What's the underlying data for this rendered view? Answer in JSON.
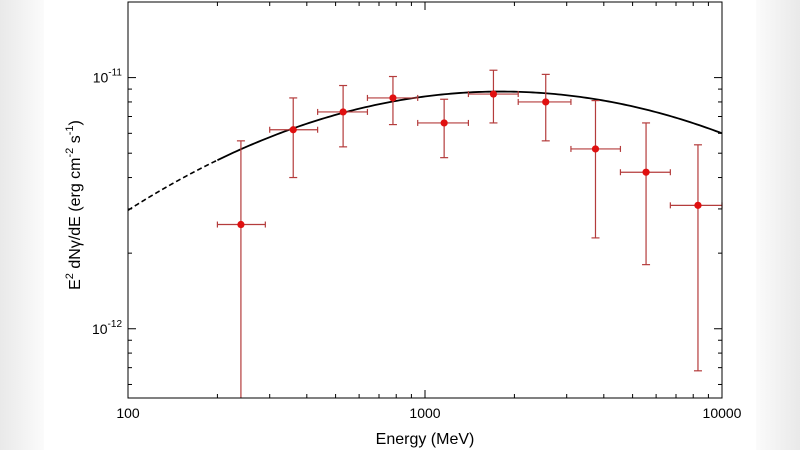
{
  "chart_data": {
    "type": "scatter",
    "xscale": "log",
    "yscale": "log",
    "xlim": [
      100,
      10000
    ],
    "ylim": [
      5.3e-13,
      2e-11
    ],
    "xlabel": "Energy (MeV)",
    "ylabel": {
      "parts": [
        "E",
        "2",
        " dN",
        "γ",
        "/dE (erg cm",
        "-2",
        " s",
        "-1",
        ")"
      ]
    },
    "x_ticks": [
      {
        "value": 100,
        "label": "100"
      },
      {
        "value": 1000,
        "label": "1000"
      },
      {
        "value": 10000,
        "label": "10000"
      }
    ],
    "y_ticks": [
      {
        "value": 1e-11,
        "base": "10",
        "exp": "-11"
      },
      {
        "value": 1e-12,
        "base": "10",
        "exp": "-12"
      }
    ],
    "grid": false,
    "colors": {
      "points": "#e01010",
      "errorbars": "#b43c3c",
      "model": "#000000"
    },
    "points": [
      {
        "x": 240,
        "y": 2.6e-12,
        "xlo": 200,
        "xhi": 290,
        "ylo": 3e-13,
        "yhi": 5.6e-12
      },
      {
        "x": 360,
        "y": 6.2e-12,
        "xlo": 300,
        "xhi": 435,
        "ylo": 4e-12,
        "yhi": 8.3e-12
      },
      {
        "x": 530,
        "y": 7.3e-12,
        "xlo": 435,
        "xhi": 640,
        "ylo": 5.3e-12,
        "yhi": 9.3e-12
      },
      {
        "x": 780,
        "y": 8.3e-12,
        "xlo": 640,
        "xhi": 945,
        "ylo": 6.5e-12,
        "yhi": 1.01e-11
      },
      {
        "x": 1160,
        "y": 6.6e-12,
        "xlo": 945,
        "xhi": 1400,
        "ylo": 4.8e-12,
        "yhi": 8.2e-12
      },
      {
        "x": 1700,
        "y": 8.6e-12,
        "xlo": 1400,
        "xhi": 2060,
        "ylo": 6.6e-12,
        "yhi": 1.07e-11
      },
      {
        "x": 2550,
        "y": 8e-12,
        "xlo": 2060,
        "xhi": 3100,
        "ylo": 5.6e-12,
        "yhi": 1.03e-11
      },
      {
        "x": 3750,
        "y": 5.2e-12,
        "xlo": 3100,
        "xhi": 4550,
        "ylo": 2.3e-12,
        "yhi": 8.1e-12
      },
      {
        "x": 5550,
        "y": 4.2e-12,
        "xlo": 4550,
        "xhi": 6700,
        "ylo": 1.8e-12,
        "yhi": 6.6e-12
      },
      {
        "x": 8300,
        "y": 3.1e-12,
        "xlo": 6700,
        "xhi": 10000,
        "ylo": 6.8e-13,
        "yhi": 5.4e-12
      }
    ],
    "model": {
      "type": "logparabola",
      "peak_energy": 1800,
      "peak_flux": 8.8e-12,
      "curvature": 0.3,
      "dashed_range": [
        100,
        200
      ],
      "solid_range": [
        200,
        10000
      ]
    }
  }
}
